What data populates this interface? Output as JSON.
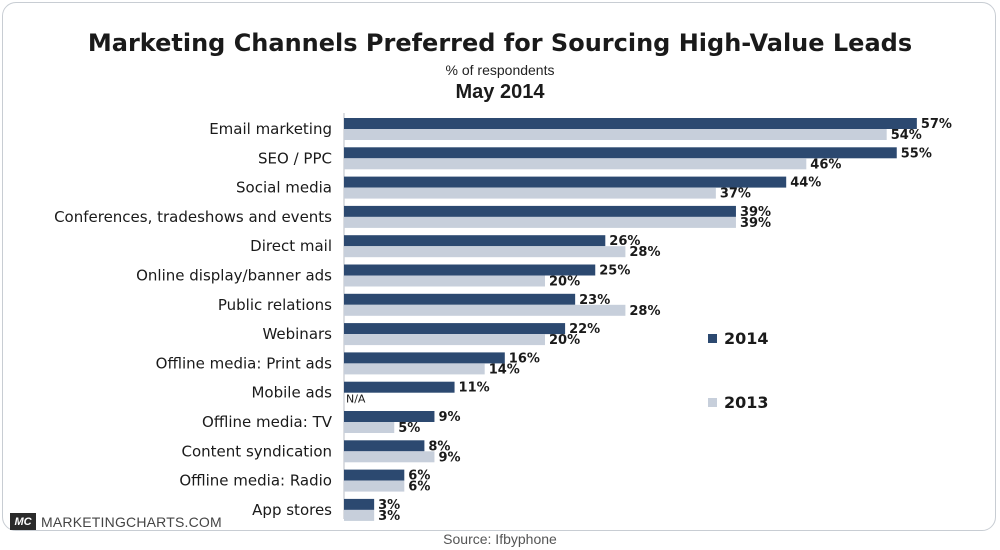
{
  "header": {
    "title": "Marketing Channels Preferred for Sourcing High-Value Leads",
    "subtitle": "% of respondents",
    "date": "May 2014"
  },
  "footer": {
    "logo_mark": "MC",
    "site": "MARKETINGCHARTS.COM",
    "source": "Source: Ifbyphone"
  },
  "colors": {
    "series_2014": "#2c4970",
    "series_2013": "#c7cfdb"
  },
  "chart_data": {
    "type": "bar",
    "orientation": "horizontal",
    "categories": [
      "Email marketing",
      "SEO / PPC",
      "Social media",
      "Conferences, tradeshows and events",
      "Direct mail",
      "Online display/banner ads",
      "Public relations",
      "Webinars",
      "Offline media: Print ads",
      "Mobile ads",
      "Offline media: TV",
      "Content syndication",
      "Offline media: Radio",
      "App stores"
    ],
    "series": [
      {
        "name": "2014",
        "values": [
          57,
          55,
          44,
          39,
          26,
          25,
          23,
          22,
          16,
          11,
          9,
          8,
          6,
          3
        ],
        "labels": [
          "57%",
          "55%",
          "44%",
          "39%",
          "26%",
          "25%",
          "23%",
          "22%",
          "16%",
          "11%",
          "9%",
          "8%",
          "6%",
          "3%"
        ]
      },
      {
        "name": "2013",
        "values": [
          54,
          46,
          37,
          39,
          28,
          20,
          28,
          20,
          14,
          null,
          5,
          9,
          6,
          3
        ],
        "labels": [
          "54%",
          "46%",
          "37%",
          "39%",
          "28%",
          "20%",
          "28%",
          "20%",
          "14%",
          "N/A",
          "5%",
          "9%",
          "6%",
          "3%"
        ]
      }
    ],
    "xlim": [
      0,
      60
    ],
    "grid": false,
    "legend": "right"
  }
}
